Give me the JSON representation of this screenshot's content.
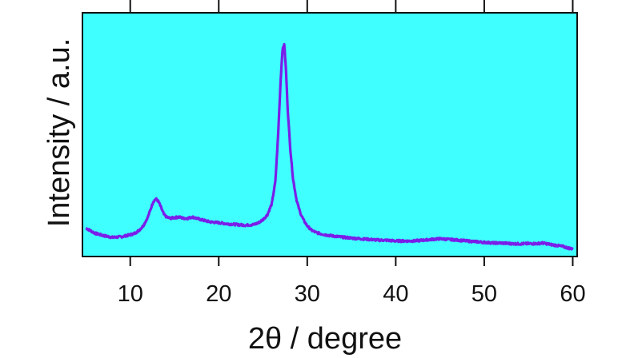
{
  "chart_data": {
    "type": "line",
    "title": "",
    "xlabel": "2θ / degree",
    "ylabel": "Intensity / a.u.",
    "xlim": [
      4.6,
      60.5
    ],
    "ylim": [
      0,
      100
    ],
    "x_ticks": [
      10,
      20,
      30,
      40,
      50,
      60
    ],
    "x_tick_labels": [
      "10",
      "20",
      "30",
      "40",
      "50",
      "60"
    ],
    "y_ticks_shown": false,
    "grid": false,
    "legend": "none",
    "colors": {
      "background": "#40ffff",
      "line": "#7a1ee8",
      "frame": "#111111"
    },
    "series": [
      {
        "x": [
          5.0,
          6.0,
          7.0,
          8.0,
          9.0,
          10.0,
          10.5,
          11.0,
          11.5,
          12.0,
          12.3,
          12.6,
          12.9,
          13.2,
          13.5,
          13.8,
          14.1,
          14.5,
          15.0,
          15.5,
          16.0,
          16.5,
          17.0,
          17.5,
          18.0,
          19.0,
          20.0,
          21.0,
          22.0,
          23.0,
          24.0,
          24.5,
          25.0,
          25.5,
          26.0,
          26.4,
          26.7,
          27.0,
          27.2,
          27.4,
          27.6,
          27.8,
          28.1,
          28.4,
          28.8,
          29.2,
          29.6,
          30.0,
          30.5,
          31.0,
          32.0,
          33.0,
          34.0,
          35.0,
          36.0,
          37.0,
          38.0,
          39.0,
          40.0,
          41.0,
          42.0,
          43.0,
          44.0,
          45.0,
          46.0,
          47.0,
          48.0,
          49.0,
          50.0,
          51.0,
          52.0,
          53.0,
          54.0,
          55.0,
          56.0,
          56.5,
          57.0,
          57.5,
          58.0,
          58.5,
          59.0,
          59.5,
          60.0
        ],
        "y": [
          11.0,
          8.7,
          7.6,
          6.8,
          7.1,
          8.0,
          8.6,
          10.0,
          12.2,
          16.0,
          19.5,
          22.9,
          24.2,
          22.9,
          20.1,
          17.2,
          16.0,
          15.4,
          15.7,
          16.0,
          15.4,
          15.4,
          16.0,
          15.4,
          14.8,
          13.8,
          13.4,
          12.9,
          12.6,
          12.3,
          12.6,
          13.4,
          14.8,
          17.0,
          22.0,
          32.0,
          52.0,
          78.0,
          91.0,
          94.0,
          82.0,
          64.0,
          46.0,
          33.0,
          23.5,
          18.0,
          14.5,
          12.0,
          10.0,
          9.0,
          8.0,
          7.4,
          6.9,
          6.5,
          6.2,
          5.9,
          5.6,
          5.5,
          5.2,
          5.2,
          5.2,
          5.5,
          5.9,
          6.2,
          5.9,
          5.6,
          5.2,
          4.9,
          4.6,
          4.3,
          4.3,
          4.0,
          3.9,
          4.0,
          4.0,
          4.3,
          4.0,
          3.6,
          3.3,
          3.0,
          2.6,
          2.0,
          1.7
        ]
      }
    ]
  }
}
